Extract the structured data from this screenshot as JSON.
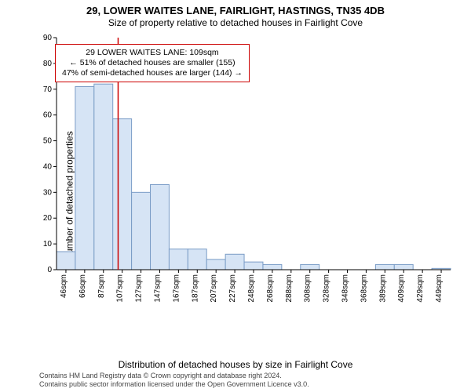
{
  "header": {
    "title": "29, LOWER WAITES LANE, FAIRLIGHT, HASTINGS, TN35 4DB",
    "subtitle": "Size of property relative to detached houses in Fairlight Cove"
  },
  "chart": {
    "type": "histogram",
    "ylabel": "Number of detached properties",
    "xlabel": "Distribution of detached houses by size in Fairlight Cove",
    "categories": [
      "46sqm",
      "66sqm",
      "87sqm",
      "107sqm",
      "127sqm",
      "147sqm",
      "167sqm",
      "187sqm",
      "207sqm",
      "227sqm",
      "248sqm",
      "268sqm",
      "288sqm",
      "308sqm",
      "328sqm",
      "348sqm",
      "368sqm",
      "389sqm",
      "409sqm",
      "429sqm",
      "449sqm"
    ],
    "values": [
      7,
      71,
      72,
      58.5,
      30,
      33,
      8,
      8,
      4,
      6,
      3,
      2,
      0,
      2,
      0,
      0,
      0,
      2,
      2,
      0,
      0.5
    ],
    "bar_fill": "#d6e4f5",
    "bar_stroke": "#7a9cc6",
    "ylim": [
      0,
      90
    ],
    "ytick_step": 10,
    "marker_x_value": 109,
    "marker_color": "#c00",
    "background_color": "#ffffff",
    "grid_color": "#dddddd",
    "label_fontsize": 10
  },
  "annotation": {
    "line1": "29 LOWER WAITES LANE: 109sqm",
    "line2": "← 51% of detached houses are smaller (155)",
    "line3": "47% of semi-detached houses are larger (144) →",
    "border_color": "#c00"
  },
  "footer": {
    "line1": "Contains HM Land Registry data © Crown copyright and database right 2024.",
    "line2": "Contains public sector information licensed under the Open Government Licence v3.0."
  }
}
